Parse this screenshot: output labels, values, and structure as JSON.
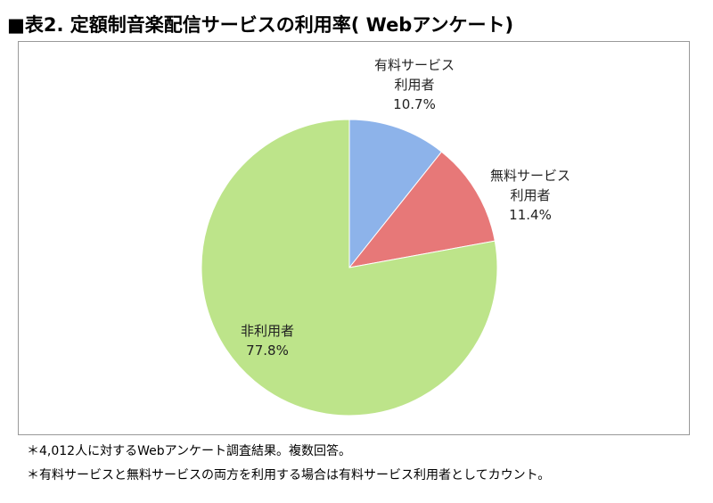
{
  "chart_data": {
    "type": "pie",
    "title": "■表2. 定額制音楽配信サービスの利用率( Webアンケート)",
    "categories": [
      "有料サービス利用者",
      "無料サービス利用者",
      "非利用者"
    ],
    "values": [
      10.7,
      11.4,
      77.8
    ],
    "value_labels": [
      "10.7%",
      "11.4%",
      "77.8%"
    ],
    "colors": [
      "#8db3ea",
      "#e77878",
      "#bde48a"
    ],
    "notes": [
      "＊4,012人に対するWebアンケート調査結果。複数回答。",
      "＊有料サービスと無料サービスの両方を利用する場合は有料サービス利用者としてカウント。"
    ]
  }
}
